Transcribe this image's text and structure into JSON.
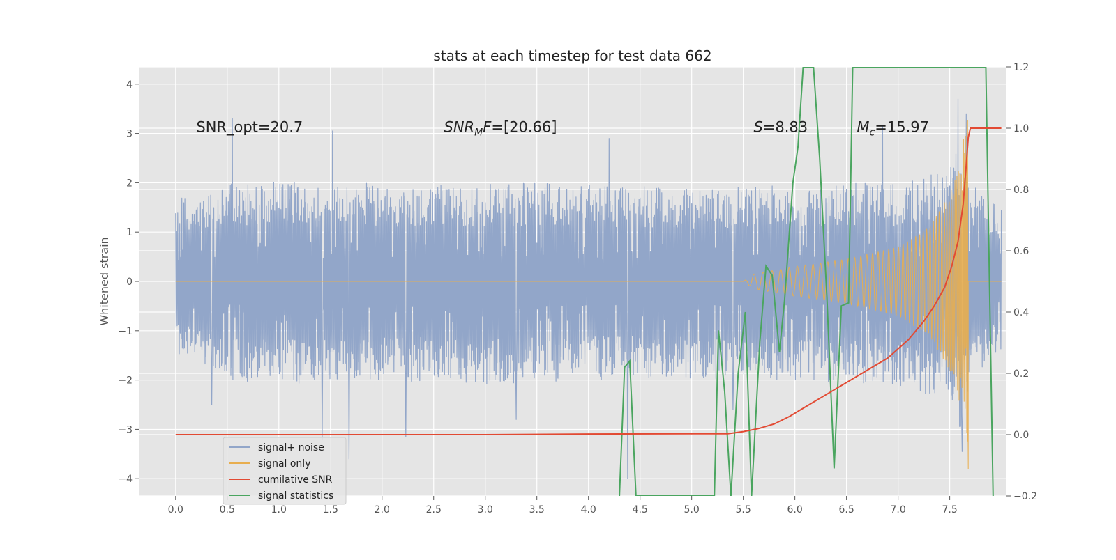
{
  "chart_data": {
    "type": "line",
    "title": "stats at each timestep for test data 662",
    "ylabel": "Whitened strain",
    "xlabel": "",
    "xlim": [
      -0.35,
      8.05
    ],
    "ylim": [
      -4.35,
      4.35
    ],
    "y2lim": [
      -0.2,
      1.2
    ],
    "grid": true,
    "xticks": [
      0.0,
      0.5,
      1.0,
      1.5,
      2.0,
      2.5,
      3.0,
      3.5,
      4.0,
      4.5,
      5.0,
      5.5,
      6.0,
      6.5,
      7.0,
      7.5
    ],
    "xtick_labels": [
      "0.0",
      "0.5",
      "1.0",
      "1.5",
      "2.0",
      "2.5",
      "3.0",
      "3.5",
      "4.0",
      "4.5",
      "5.0",
      "5.5",
      "6.0",
      "6.5",
      "7.0",
      "7.5"
    ],
    "yticks": [
      4,
      3,
      2,
      1,
      0,
      -1,
      -2,
      -3,
      -4
    ],
    "ytick_labels": [
      "4",
      "3",
      "2",
      "1",
      "0",
      "−1",
      "−2",
      "−3",
      "−4"
    ],
    "y2ticks": [
      1.2,
      1.0,
      0.8,
      0.6,
      0.4,
      0.2,
      0.0,
      -0.2
    ],
    "y2tick_labels": [
      "1.2",
      "1.0",
      "0.8",
      "0.6",
      "0.4",
      "0.2",
      "0.0",
      "−0.2"
    ],
    "annotations": [
      {
        "text": "SNR_opt=20.7",
        "x": 0.2,
        "y": 3.0
      },
      {
        "text": "SNR_MF=[20.66]",
        "x": 2.6,
        "y": 3.0
      },
      {
        "text": "S=8.83",
        "x": 5.6,
        "y": 3.0
      },
      {
        "text": "M_c=15.97",
        "x": 6.6,
        "y": 3.0
      }
    ],
    "legend": {
      "location": "lower-left",
      "entries": [
        "signal+ noise",
        "signal only",
        "cumilative SNR",
        "signal statistics"
      ]
    },
    "series": [
      {
        "name": "signal+ noise",
        "axis": "left",
        "style": "dense-noise",
        "x_range": [
          0.0,
          8.0
        ],
        "envelope_upper": [
          [
            0.0,
            1.7
          ],
          [
            0.5,
            2.0
          ],
          [
            1.0,
            2.0
          ],
          [
            2.0,
            2.0
          ],
          [
            3.0,
            2.0
          ],
          [
            4.0,
            2.0
          ],
          [
            5.0,
            1.9
          ],
          [
            6.0,
            2.0
          ],
          [
            7.0,
            2.0
          ],
          [
            7.5,
            2.3
          ],
          [
            7.6,
            3.0
          ],
          [
            7.7,
            2.0
          ],
          [
            8.0,
            1.5
          ]
        ],
        "envelope_lower": [
          [
            0.0,
            -1.5
          ],
          [
            0.5,
            -2.0
          ],
          [
            1.0,
            -2.1
          ],
          [
            2.0,
            -2.0
          ],
          [
            3.0,
            -2.1
          ],
          [
            4.0,
            -2.0
          ],
          [
            5.0,
            -2.0
          ],
          [
            6.0,
            -2.0
          ],
          [
            7.0,
            -2.1
          ],
          [
            7.5,
            -2.5
          ],
          [
            7.6,
            -3.0
          ],
          [
            7.7,
            -2.0
          ],
          [
            8.0,
            -1.4
          ]
        ],
        "spikes": [
          [
            0.55,
            3.3
          ],
          [
            1.52,
            3.05
          ],
          [
            4.2,
            2.9
          ],
          [
            6.85,
            3.15
          ],
          [
            7.58,
            3.7
          ],
          [
            7.66,
            3.4
          ],
          [
            1.42,
            -3.2
          ],
          [
            1.68,
            -3.6
          ],
          [
            2.23,
            -3.15
          ],
          [
            4.38,
            -4.0
          ],
          [
            7.62,
            -3.45
          ],
          [
            0.35,
            -2.5
          ],
          [
            3.3,
            -2.8
          ],
          [
            5.4,
            -2.6
          ]
        ]
      },
      {
        "name": "signal only",
        "axis": "left",
        "style": "chirp",
        "amplitude": [
          [
            0.0,
            0.0
          ],
          [
            5.5,
            0.0
          ],
          [
            5.6,
            0.15
          ],
          [
            6.0,
            0.3
          ],
          [
            6.5,
            0.45
          ],
          [
            7.0,
            0.7
          ],
          [
            7.3,
            1.1
          ],
          [
            7.5,
            1.8
          ],
          [
            7.6,
            2.5
          ],
          [
            7.66,
            3.2
          ],
          [
            7.68,
            3.3
          ],
          [
            7.69,
            0.0
          ],
          [
            8.0,
            0.0
          ]
        ],
        "final_dip": [
          7.68,
          -3.8
        ]
      },
      {
        "name": "cumilative SNR",
        "axis": "right",
        "x": [
          0.0,
          1.0,
          2.0,
          3.0,
          4.0,
          5.0,
          5.35,
          5.5,
          5.65,
          5.8,
          5.95,
          6.1,
          6.3,
          6.5,
          6.7,
          6.9,
          7.1,
          7.25,
          7.35,
          7.45,
          7.52,
          7.58,
          7.63,
          7.66,
          7.68,
          7.7,
          7.8,
          7.9,
          8.0
        ],
        "y": [
          0.0,
          0.0,
          0.0,
          0.0,
          0.002,
          0.003,
          0.003,
          0.01,
          0.02,
          0.035,
          0.06,
          0.09,
          0.13,
          0.17,
          0.21,
          0.25,
          0.31,
          0.37,
          0.42,
          0.48,
          0.55,
          0.63,
          0.75,
          0.88,
          0.97,
          1.0,
          1.0,
          1.0,
          1.0
        ]
      },
      {
        "name": "signal statistics",
        "axis": "right",
        "x": [
          4.3,
          4.35,
          4.4,
          4.46,
          5.22,
          5.26,
          5.32,
          5.38,
          5.45,
          5.52,
          5.58,
          5.66,
          5.72,
          5.78,
          5.85,
          5.9,
          5.98,
          6.03,
          6.08,
          6.12,
          6.18,
          6.24,
          6.31,
          6.38,
          6.45,
          6.52,
          6.56,
          6.6,
          7.85,
          7.88,
          7.92
        ],
        "y": [
          -0.2,
          0.22,
          0.24,
          -0.2,
          -0.2,
          0.34,
          0.14,
          -0.2,
          0.2,
          0.4,
          -0.2,
          0.3,
          0.55,
          0.52,
          0.27,
          0.44,
          0.82,
          0.94,
          1.2,
          1.2,
          1.2,
          0.9,
          0.45,
          -0.11,
          0.42,
          0.43,
          1.2,
          1.2,
          1.2,
          0.6,
          -0.2
        ]
      }
    ]
  },
  "colors": {
    "axes_bg": "#e5e5e5",
    "grid": "#ffffff",
    "tick_text": "#555555",
    "title_text": "#222222",
    "signal_noise": "#92a6c9",
    "signal_only": "#e8ae4f",
    "cumulative_snr": "#e24a33",
    "signal_statistics": "#4aa55f"
  }
}
